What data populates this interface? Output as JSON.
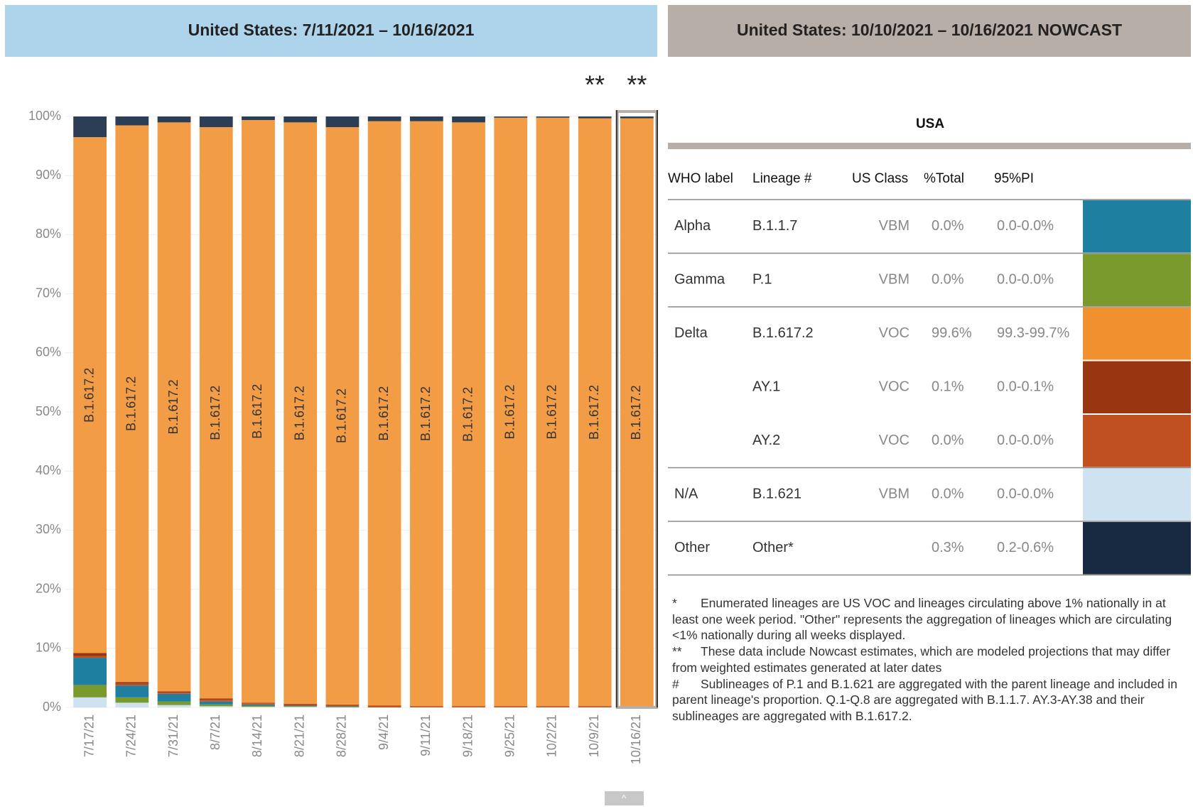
{
  "chart_data": {
    "type": "stacked_bar",
    "title": "United States: 7/11/2021 – 10/16/2021",
    "categories": [
      "7/17/21",
      "7/24/21",
      "7/31/21",
      "8/7/21",
      "8/14/21",
      "8/21/21",
      "8/28/21",
      "9/4/21",
      "9/11/21",
      "9/18/21",
      "9/25/21",
      "10/2/21",
      "10/9/21",
      "10/16/21"
    ],
    "series": [
      {
        "name": "B.1.621",
        "color": "#cfe2ef",
        "values": [
          1.7,
          0.8,
          0.4,
          0.2,
          0.1,
          0.1,
          0,
          0,
          0,
          0,
          0,
          0,
          0,
          0
        ]
      },
      {
        "name": "P.1",
        "color": "#7a9a2e",
        "values": [
          2.1,
          0.9,
          0.6,
          0.3,
          0.2,
          0.1,
          0.1,
          0,
          0,
          0,
          0,
          0,
          0,
          0
        ]
      },
      {
        "name": "B.1.1.7",
        "color": "#1f7fa0",
        "values": [
          4.6,
          2.0,
          1.3,
          0.5,
          0.2,
          0.1,
          0.1,
          0,
          0,
          0,
          0,
          0,
          0,
          0
        ]
      },
      {
        "name": "AY.2",
        "color": "#c0501f",
        "values": [
          0.3,
          0.3,
          0.2,
          0.3,
          0.2,
          0.2,
          0.2,
          0.2,
          0.1,
          0.1,
          0.1,
          0.1,
          0.1,
          0.0
        ]
      },
      {
        "name": "AY.1",
        "color": "#9a3511",
        "values": [
          0.5,
          0.3,
          0.2,
          0.2,
          0.1,
          0.1,
          0.1,
          0.1,
          0.1,
          0.1,
          0.1,
          0.1,
          0.1,
          0.1
        ]
      },
      {
        "name": "B.1.617.2",
        "color": "#f29c45",
        "show_label": true,
        "values": [
          87.3,
          94.2,
          96.3,
          96.7,
          98.6,
          98.4,
          97.7,
          98.9,
          99.0,
          98.8,
          99.6,
          99.6,
          99.5,
          99.6
        ]
      },
      {
        "name": "Other",
        "color": "#2c3e55",
        "values": [
          3.5,
          1.5,
          1.0,
          1.8,
          0.6,
          1.0,
          1.8,
          0.8,
          0.8,
          1.0,
          0.2,
          0.2,
          0.3,
          0.3
        ]
      }
    ],
    "ylim": [
      0,
      100
    ],
    "yticks": [
      {
        "value": 0,
        "label": "0%"
      },
      {
        "value": 10,
        "label": "10%"
      },
      {
        "value": 20,
        "label": "20%"
      },
      {
        "value": 30,
        "label": "30%"
      },
      {
        "value": 40,
        "label": "40%"
      },
      {
        "value": 50,
        "label": "50%"
      },
      {
        "value": 60,
        "label": "60%"
      },
      {
        "value": 70,
        "label": "70%"
      },
      {
        "value": 80,
        "label": "80%"
      },
      {
        "value": 90,
        "label": "90%"
      },
      {
        "value": 100,
        "label": "100%"
      }
    ],
    "grid": true,
    "annotations": [
      {
        "text": "**",
        "category": 12
      },
      {
        "text": "**",
        "category": 13
      }
    ],
    "highlight_category": 13
  },
  "nowcast": {
    "header": "United States: 10/10/2021 – 10/16/2021 NOWCAST",
    "title": "USA",
    "columns": [
      "WHO label",
      "Lineage #",
      "US Class",
      "%Total",
      "95%PI"
    ],
    "groups": [
      {
        "who": "Alpha",
        "rows": [
          {
            "lineage": "B.1.1.7",
            "class": "VBM",
            "total": "0.0%",
            "pi": "0.0-0.0%",
            "color": "#1f7fa0"
          }
        ]
      },
      {
        "who": "Gamma",
        "rows": [
          {
            "lineage": "P.1",
            "class": "VBM",
            "total": "0.0%",
            "pi": "0.0-0.0%",
            "color": "#7a9a2e"
          }
        ]
      },
      {
        "who": "Delta",
        "rows": [
          {
            "lineage": "B.1.617.2",
            "class": "VOC",
            "total": "99.6%",
            "pi": "99.3-99.7%",
            "color": "#f0902f"
          },
          {
            "lineage": "AY.1",
            "class": "VOC",
            "total": "0.1%",
            "pi": "0.0-0.1%",
            "color": "#9a3511"
          },
          {
            "lineage": "AY.2",
            "class": "VOC",
            "total": "0.0%",
            "pi": "0.0-0.0%",
            "color": "#c0501f"
          }
        ]
      },
      {
        "who": "N/A",
        "rows": [
          {
            "lineage": "B.1.621",
            "class": "VBM",
            "total": "0.0%",
            "pi": "0.0-0.0%",
            "color": "#cfe2ef"
          }
        ]
      },
      {
        "who": "Other",
        "rows": [
          {
            "lineage": "Other*",
            "class": null,
            "total": "0.3%",
            "pi": "0.2-0.6%",
            "color": "#172a42"
          }
        ]
      }
    ],
    "notes": [
      {
        "mark": "*",
        "text": "Enumerated lineages are US VOC and lineages circulating above 1% nationally in at least one week period. \"Other\" represents the aggregation of lineages which are circulating <1% nationally during all weeks displayed."
      },
      {
        "mark": "**",
        "text": "These data include Nowcast estimates, which are modeled projections that may differ from weighted estimates generated at later dates"
      },
      {
        "mark": "#",
        "text": "Sublineages of P.1 and B.1.621 are aggregated with the parent lineage and included in parent lineage's proportion. Q.1-Q.8 are aggregated with B.1.1.7. AY.3-AY.38 and their sublineages are aggregated with B.1.617.2."
      }
    ]
  },
  "scroll_button": "^"
}
